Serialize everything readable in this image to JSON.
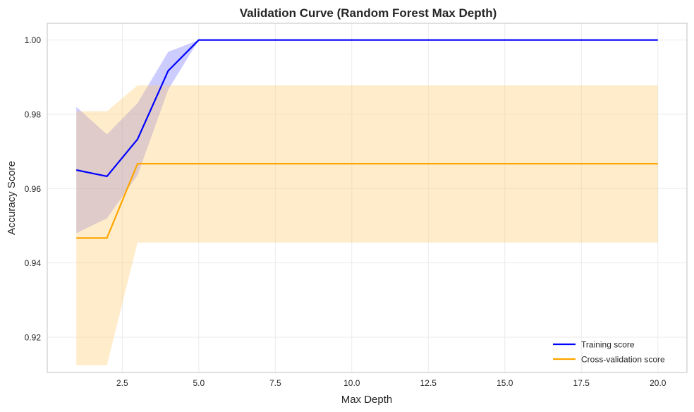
{
  "chart_data": {
    "type": "line",
    "title": "Validation Curve (Random Forest Max Depth)",
    "xlabel": "Max Depth",
    "ylabel": "Accuracy Score",
    "xlim": [
      0.05,
      20.95
    ],
    "ylim": [
      0.9105,
      1.0045
    ],
    "xticks": [
      2.5,
      5.0,
      7.5,
      10.0,
      12.5,
      15.0,
      17.5,
      20.0
    ],
    "xtick_labels": [
      "2.5",
      "5.0",
      "7.5",
      "10.0",
      "12.5",
      "15.0",
      "17.5",
      "20.0"
    ],
    "yticks": [
      0.92,
      0.94,
      0.96,
      0.98,
      1.0
    ],
    "ytick_labels": [
      "0.92",
      "0.94",
      "0.96",
      "0.98",
      "1.00"
    ],
    "grid": true,
    "legend_position": "bottom-right",
    "x": [
      1,
      2,
      3,
      4,
      5,
      6,
      7,
      8,
      9,
      10,
      11,
      12,
      13,
      14,
      15,
      16,
      17,
      18,
      19,
      20
    ],
    "series": [
      {
        "name": "Training score",
        "color": "#0000ff",
        "band_color": "#8080ff",
        "values": [
          0.965,
          0.9633,
          0.9733,
          0.9917,
          1.0,
          1.0,
          1.0,
          1.0,
          1.0,
          1.0,
          1.0,
          1.0,
          1.0,
          1.0,
          1.0,
          1.0,
          1.0,
          1.0,
          1.0,
          1.0
        ],
        "band_lower": [
          0.948,
          0.952,
          0.9636,
          0.9866,
          1.0,
          1.0,
          1.0,
          1.0,
          1.0,
          1.0,
          1.0,
          1.0,
          1.0,
          1.0,
          1.0,
          1.0,
          1.0,
          1.0,
          1.0,
          1.0
        ],
        "band_upper": [
          0.982,
          0.9746,
          0.983,
          0.9968,
          1.0,
          1.0,
          1.0,
          1.0,
          1.0,
          1.0,
          1.0,
          1.0,
          1.0,
          1.0,
          1.0,
          1.0,
          1.0,
          1.0,
          1.0,
          1.0
        ]
      },
      {
        "name": "Cross-validation score",
        "color": "#ffa500",
        "band_color": "#ffc966",
        "values": [
          0.9467,
          0.9467,
          0.9667,
          0.9667,
          0.9667,
          0.9667,
          0.9667,
          0.9667,
          0.9667,
          0.9667,
          0.9667,
          0.9667,
          0.9667,
          0.9667,
          0.9667,
          0.9667,
          0.9667,
          0.9667,
          0.9667,
          0.9667
        ],
        "band_lower": [
          0.9125,
          0.9125,
          0.9455,
          0.9455,
          0.9455,
          0.9455,
          0.9455,
          0.9455,
          0.9455,
          0.9455,
          0.9455,
          0.9455,
          0.9455,
          0.9455,
          0.9455,
          0.9455,
          0.9455,
          0.9455,
          0.9455,
          0.9455
        ],
        "band_upper": [
          0.9808,
          0.9808,
          0.9878,
          0.9878,
          0.9878,
          0.9878,
          0.9878,
          0.9878,
          0.9878,
          0.9878,
          0.9878,
          0.9878,
          0.9878,
          0.9878,
          0.9878,
          0.9878,
          0.9878,
          0.9878,
          0.9878,
          0.9878
        ]
      }
    ]
  }
}
